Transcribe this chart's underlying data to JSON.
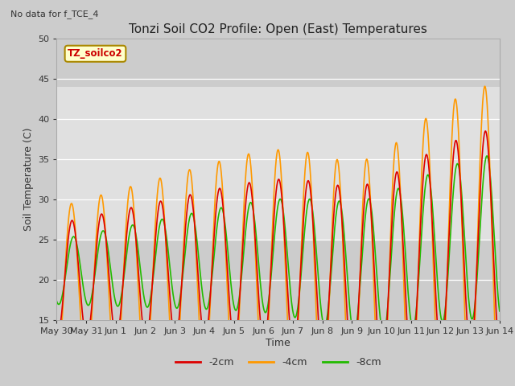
{
  "title": "Tonzi Soil CO2 Profile: Open (East) Temperatures",
  "subtitle": "No data for f_TCE_4",
  "xlabel": "Time",
  "ylabel": "Soil Temperature (C)",
  "ylim": [
    15,
    50
  ],
  "xlim_days": [
    0,
    15
  ],
  "legend_label": "TZ_soilco2",
  "legend_bg": "#ffffcc",
  "legend_border": "#aa8800",
  "series_2cm": {
    "color": "#dd0000",
    "label": "-2cm"
  },
  "series_4cm": {
    "color": "#ff9900",
    "label": "-4cm"
  },
  "series_8cm": {
    "color": "#22bb00",
    "label": "-8cm"
  },
  "tick_labels": [
    "May 30",
    "May 31",
    "Jun 1",
    "Jun 2",
    "Jun 3",
    "Jun 4",
    "Jun 5",
    "Jun 6",
    "Jun 7",
    "Jun 8",
    "Jun 9",
    "Jun 10",
    "Jun 11",
    "Jun 12",
    "Jun 13",
    "Jun 14"
  ],
  "tick_positions": [
    0,
    1,
    2,
    3,
    4,
    5,
    6,
    7,
    8,
    9,
    10,
    11,
    12,
    13,
    14,
    15
  ],
  "yticks": [
    15,
    20,
    25,
    30,
    35,
    40,
    45,
    50
  ],
  "gray_band": [
    25,
    44
  ],
  "bg_color": "#dddddd",
  "plot_area_color": "#cccccc",
  "band_color": "#e8e8e8",
  "white_band": "#f0f0f0"
}
